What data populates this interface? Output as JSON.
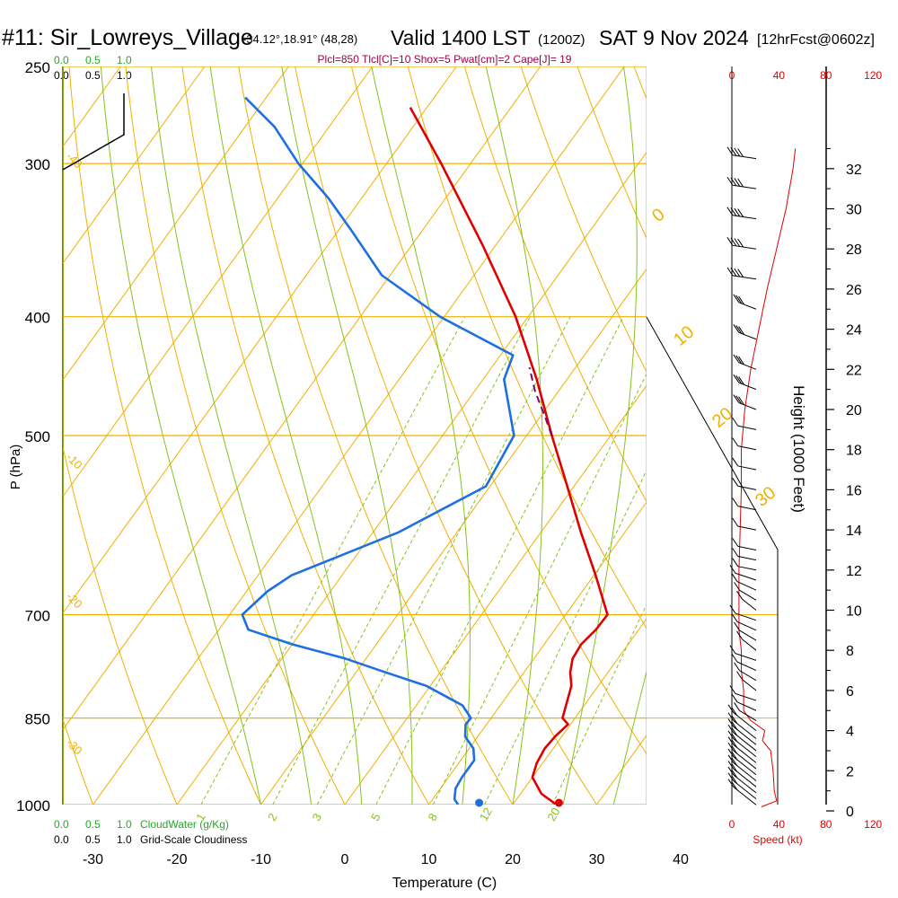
{
  "header": {
    "station": "#11: Sir_Lowreys_Village",
    "coords": "-34.12°,18.91° (48,28)",
    "valid": "Valid 1400 LST",
    "zulu": "(1200Z)",
    "date": "SAT 9 Nov 2024",
    "forecast": "[12hrFcst@0602z]",
    "params": "Plcl=850 Tlcl[C]=10 Shox=5 Pwat[cm]=2 Cape[J]= 19"
  },
  "cloud_scale": {
    "top_green": [
      "0.0",
      "0.5",
      "1.0"
    ],
    "top_black": [
      "0.0",
      "0.5",
      "1.0"
    ],
    "bottom_green": [
      "0.0",
      "0.5",
      "1.0"
    ],
    "bottom_green_label": "CloudWater (g/Kg)",
    "bottom_black": [
      "0.0",
      "0.5",
      "1.0"
    ],
    "bottom_black_label": "Grid-Scale Cloudiness"
  },
  "colors": {
    "temperature": "#e00000",
    "dewpoint": "#1e6fe0",
    "isobar": "#f0b000",
    "adiabat": "#f0b000",
    "moist_adiabat": "#86c21a",
    "mixing_ratio": "#86c21a",
    "param_text": "#a0004a",
    "speed": "#e00000"
  },
  "chart_data": {
    "type": "skew-t",
    "xlabel": "Temperature (C)",
    "ylabel": "P (hPa)",
    "y2label": "Height (1000 Feet)",
    "xticks": [
      -30,
      -20,
      -10,
      0,
      10,
      20,
      30,
      40
    ],
    "pressure_ticks": [
      250,
      300,
      400,
      500,
      700,
      850,
      1000
    ],
    "height_ticks": [
      0,
      2,
      4,
      6,
      8,
      10,
      12,
      14,
      16,
      18,
      20,
      22,
      24,
      26,
      28,
      30,
      32
    ],
    "xlim": [
      -34,
      36
    ],
    "ylim_hpa": [
      1000,
      250
    ],
    "dry_adiabat_labels": [
      "0",
      "10",
      "20",
      "30",
      "-10",
      "-20",
      "-30",
      "-40"
    ],
    "mixing_ratio_labels": [
      "1",
      "2",
      "3",
      "5",
      "8",
      "12",
      "20"
    ],
    "temperature_series": {
      "name": "Temperature",
      "pressure": [
        1000,
        980,
        950,
        925,
        900,
        880,
        860,
        850,
        820,
        800,
        780,
        760,
        740,
        720,
        700,
        650,
        600,
        550,
        500,
        450,
        400,
        350,
        300,
        270
      ],
      "values": [
        25.2,
        22.5,
        20.0,
        19.3,
        19.0,
        19.2,
        19.7,
        18.5,
        17.5,
        16.8,
        15.5,
        14.6,
        14.4,
        14.9,
        15.0,
        10.2,
        4.8,
        -0.8,
        -7.0,
        -13.6,
        -21.5,
        -31.5,
        -43.5,
        -52.0
      ]
    },
    "dewpoint_series": {
      "name": "Dewpoint",
      "pressure": [
        1000,
        990,
        970,
        950,
        920,
        900,
        880,
        860,
        850,
        830,
        800,
        780,
        760,
        740,
        720,
        700,
        670,
        650,
        600,
        550,
        500,
        450,
        430,
        400,
        370,
        340,
        320,
        300,
        280,
        265
      ],
      "values": [
        13.5,
        12.6,
        11.8,
        11.6,
        11.6,
        10.5,
        8.5,
        7.5,
        7.6,
        5.5,
        -0.5,
        -6.5,
        -12.5,
        -20.0,
        -26.5,
        -28.5,
        -27.5,
        -26.0,
        -17.0,
        -10.5,
        -11.5,
        -17.5,
        -18.5,
        -30.5,
        -41.0,
        -48.5,
        -54.0,
        -60.5,
        -66.5,
        -72.5
      ]
    },
    "parcel_series": {
      "name": "Parcel",
      "pressure": [
        500,
        480,
        460,
        440
      ],
      "values": [
        -7.0,
        -9.8,
        -12.8,
        -15.5
      ]
    },
    "surface": {
      "temperature": 25.5,
      "dewpoint": 16.0
    },
    "speed_axis": {
      "label": "Speed (kt)",
      "ticks": [
        0,
        40,
        80,
        120
      ]
    },
    "wind_speed_profile": {
      "height_kft": [
        0.2,
        0.5,
        1.0,
        2.0,
        3.0,
        3.5,
        4.0,
        4.5,
        5.0,
        6.0,
        7.0,
        8.0,
        9.0,
        10.0,
        12.0,
        14.0,
        16.0,
        18.0,
        20.0,
        22.0,
        24.0,
        26.0,
        28.0,
        30.0,
        32.0,
        33.0
      ],
      "speed_kt": [
        25,
        38,
        36,
        35,
        33,
        26,
        28,
        16,
        10,
        10,
        8,
        8,
        6,
        6,
        6,
        7,
        8,
        8,
        11,
        16,
        23,
        30,
        38,
        46,
        52,
        54
      ]
    },
    "wind_barbs_kft": [
      0.3,
      0.6,
      0.9,
      1.2,
      1.5,
      1.8,
      2.1,
      2.4,
      2.7,
      3.0,
      3.3,
      3.6,
      4.0,
      4.5,
      5.0,
      5.5,
      6.0,
      6.5,
      7.0,
      7.5,
      8.0,
      8.5,
      9.0,
      9.5,
      10.0,
      10.5,
      11.0,
      11.5,
      12.0,
      12.5,
      13.0,
      14.0,
      15.0,
      16.0,
      17.0,
      18.0,
      19.0,
      20.0,
      21.0,
      22.0,
      23.5,
      25.0,
      26.5,
      28.0,
      29.5,
      31.0,
      32.5
    ]
  }
}
